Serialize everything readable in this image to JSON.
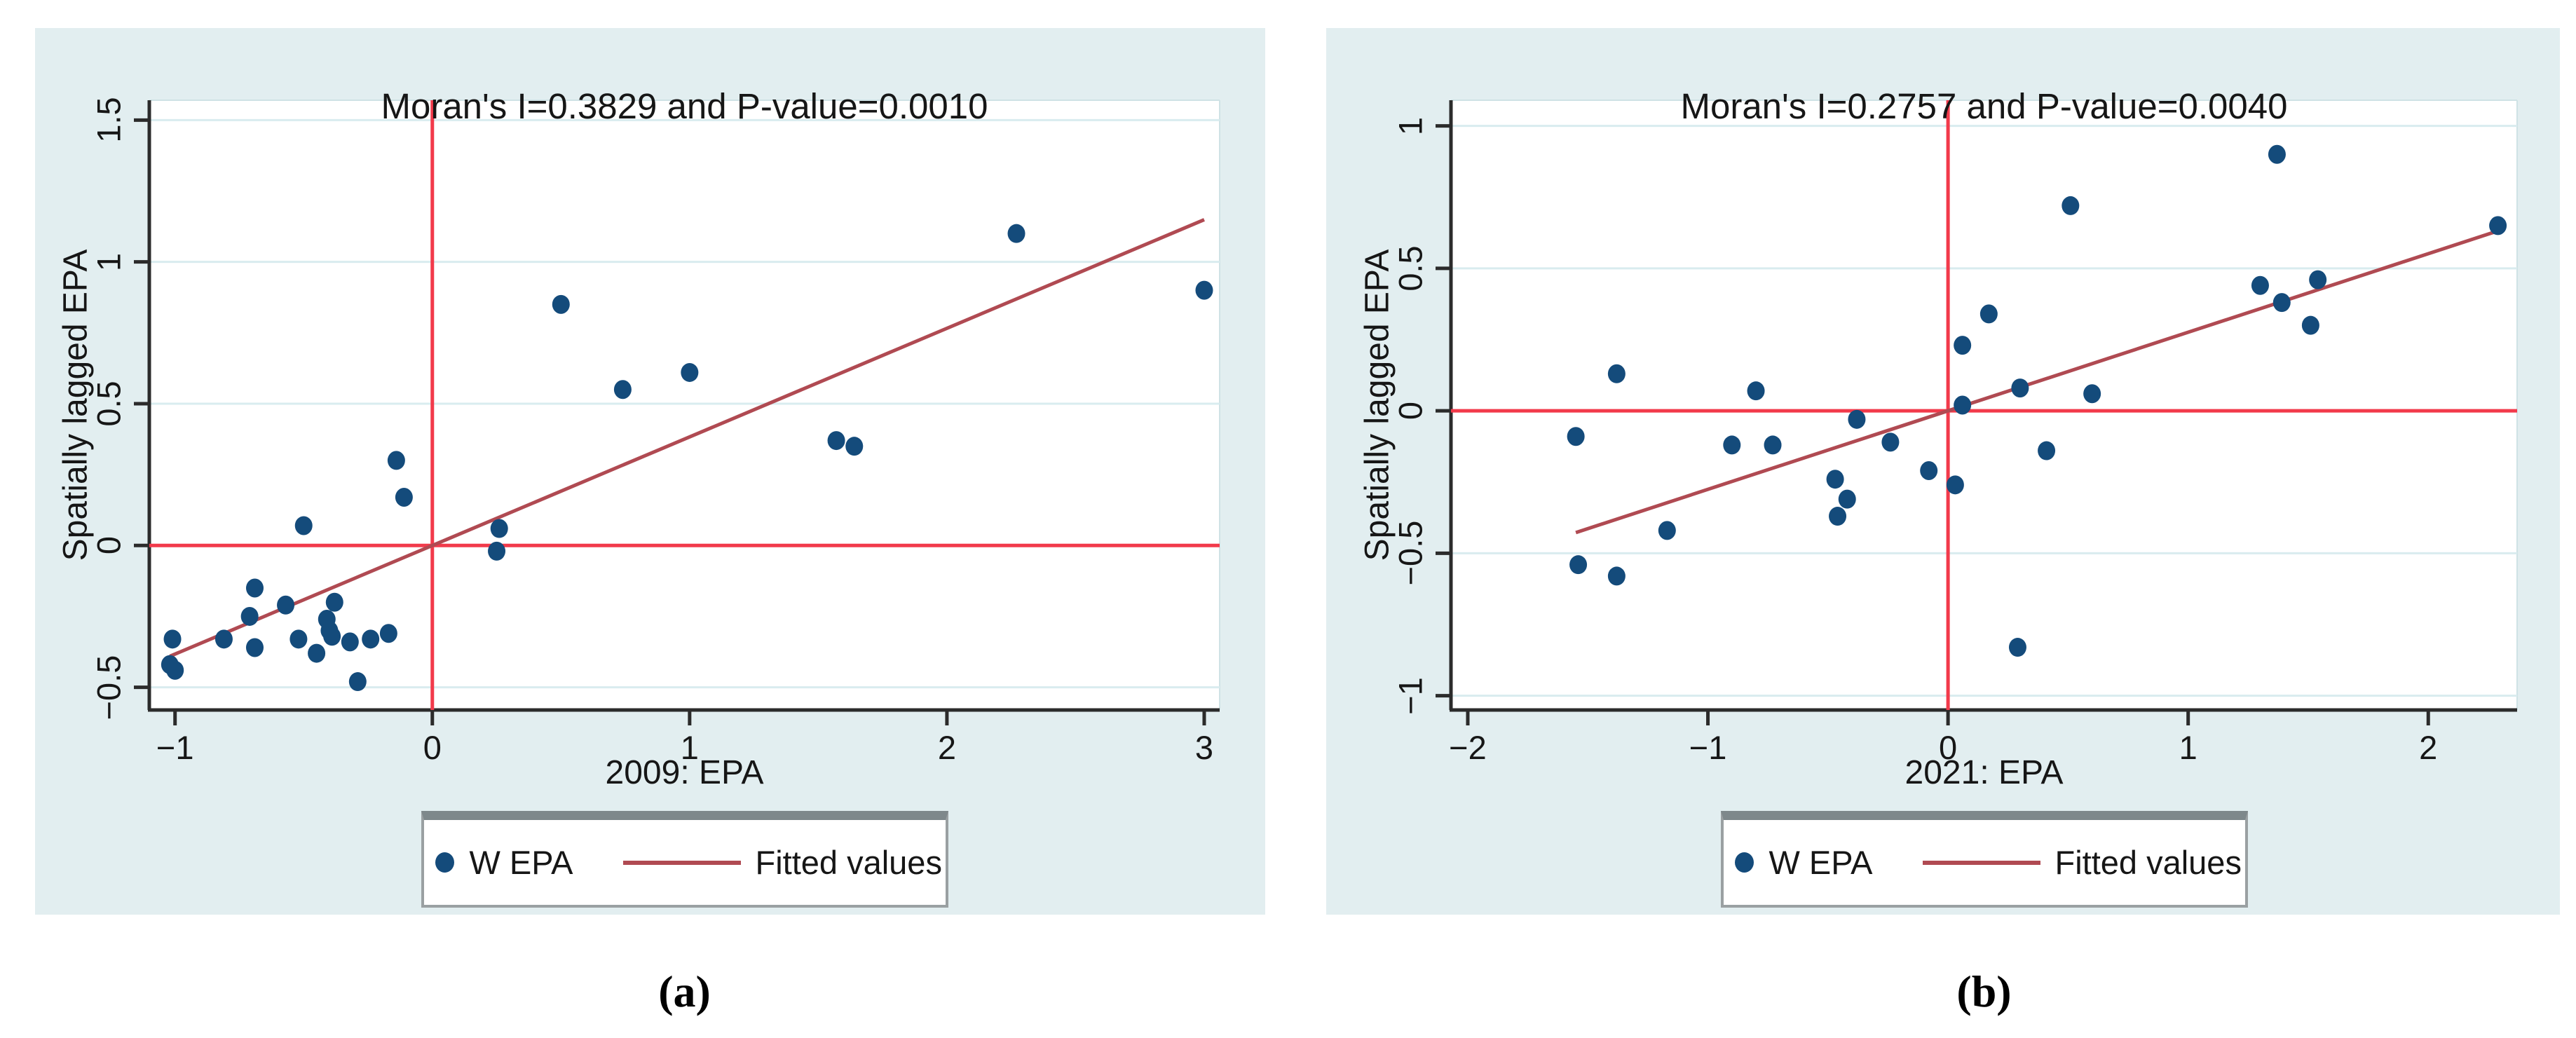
{
  "figure": {
    "type": "moran-scatterplot-pair",
    "captions": [
      "(a)",
      "(b)"
    ]
  },
  "colors": {
    "panel_background": "#e2eef0",
    "plot_background": "#ffffff",
    "gridline": "#d9ecef",
    "plot_edge_light": "#cfe2e5",
    "axis": "#2b2b2b",
    "reference_line_red": "#f23a4b",
    "fitted_line_red": "#b04a52",
    "point_navy": "#144b7b",
    "text": "#161616",
    "legend_border": "#9aa0a2"
  },
  "chart_data": [
    {
      "type": "scatter",
      "caption": "(a)",
      "title": "Moran's I=0.3829 and P-value=0.0010",
      "moran_i": 0.3829,
      "p_value": 0.001,
      "xlabel": "2009: EPA",
      "ylabel": "Spatially lagged EPA",
      "xlim": [
        -1.1,
        3.06
      ],
      "ylim": [
        -0.58,
        1.57
      ],
      "xticks": {
        "values": [
          -1,
          0,
          1,
          2,
          3
        ],
        "labels": [
          "−1",
          "0",
          "1",
          "2",
          "3"
        ]
      },
      "yticks": {
        "values": [
          -0.5,
          0,
          0.5,
          1,
          1.5
        ],
        "labels": [
          "−0.5",
          "0",
          "0.5",
          "1",
          "1.5"
        ]
      },
      "grid": "horizontal",
      "reference_lines": {
        "x": 0,
        "y": 0
      },
      "legend": {
        "marker_label": "W EPA",
        "line_label": "Fitted values",
        "position": "bottom-center"
      },
      "fit": {
        "slope": 0.3829,
        "intercept": 0,
        "x_start": -1.02,
        "x_end": 3.0
      },
      "points": [
        [
          -1.01,
          -0.33
        ],
        [
          -1.02,
          -0.42
        ],
        [
          -1.0,
          -0.44
        ],
        [
          -0.81,
          -0.33
        ],
        [
          -0.69,
          -0.15
        ],
        [
          -0.71,
          -0.25
        ],
        [
          -0.69,
          -0.36
        ],
        [
          -0.57,
          -0.21
        ],
        [
          -0.52,
          -0.33
        ],
        [
          -0.45,
          -0.38
        ],
        [
          -0.38,
          -0.2
        ],
        [
          -0.41,
          -0.26
        ],
        [
          -0.4,
          -0.3
        ],
        [
          -0.39,
          -0.32
        ],
        [
          -0.32,
          -0.34
        ],
        [
          -0.24,
          -0.33
        ],
        [
          -0.17,
          -0.31
        ],
        [
          -0.29,
          -0.48
        ],
        [
          -0.5,
          0.07
        ],
        [
          -0.14,
          0.3
        ],
        [
          -0.11,
          0.17
        ],
        [
          0.26,
          0.06
        ],
        [
          0.25,
          -0.02
        ],
        [
          0.5,
          0.85
        ],
        [
          0.74,
          0.55
        ],
        [
          1.0,
          0.61
        ],
        [
          1.57,
          0.37
        ],
        [
          1.64,
          0.35
        ],
        [
          2.27,
          1.1
        ],
        [
          3.0,
          0.9
        ]
      ]
    },
    {
      "type": "scatter",
      "caption": "(b)",
      "title": "Moran's I=0.2757 and P-value=0.0040",
      "moran_i": 0.2757,
      "p_value": 0.004,
      "xlabel": "2021: EPA",
      "ylabel": "Spatially lagged EPA",
      "xlim": [
        -2.07,
        2.37
      ],
      "ylim": [
        -1.05,
        1.09
      ],
      "xticks": {
        "values": [
          -2,
          -1,
          0,
          1,
          2
        ],
        "labels": [
          "−2",
          "−1",
          "0",
          "1",
          "2"
        ]
      },
      "yticks": {
        "values": [
          -1,
          -0.5,
          0,
          0.5,
          1
        ],
        "labels": [
          "−1",
          "−0.5",
          "0",
          "0.5",
          "1"
        ]
      },
      "grid": "horizontal",
      "reference_lines": {
        "x": 0,
        "y": 0
      },
      "legend": {
        "marker_label": "W EPA",
        "line_label": "Fitted values",
        "position": "bottom-center"
      },
      "fit": {
        "slope": 0.2757,
        "intercept": 0,
        "x_start": -1.55,
        "x_end": 2.29
      },
      "points": [
        [
          0.51,
          0.72
        ],
        [
          1.37,
          0.9
        ],
        [
          2.29,
          0.65
        ],
        [
          1.3,
          0.44
        ],
        [
          1.54,
          0.46
        ],
        [
          1.39,
          0.38
        ],
        [
          1.51,
          0.3
        ],
        [
          0.17,
          0.34
        ],
        [
          0.06,
          0.23
        ],
        [
          -1.38,
          0.13
        ],
        [
          -0.8,
          0.07
        ],
        [
          0.3,
          0.08
        ],
        [
          0.6,
          0.06
        ],
        [
          0.06,
          0.02
        ],
        [
          -0.38,
          -0.03
        ],
        [
          -1.55,
          -0.09
        ],
        [
          -0.9,
          -0.12
        ],
        [
          -0.73,
          -0.12
        ],
        [
          -0.24,
          -0.11
        ],
        [
          0.41,
          -0.14
        ],
        [
          -0.08,
          -0.21
        ],
        [
          0.03,
          -0.26
        ],
        [
          -0.47,
          -0.24
        ],
        [
          -0.42,
          -0.31
        ],
        [
          -0.46,
          -0.37
        ],
        [
          -1.17,
          -0.42
        ],
        [
          -1.54,
          -0.54
        ],
        [
          -1.38,
          -0.58
        ],
        [
          0.29,
          -0.83
        ]
      ]
    }
  ]
}
